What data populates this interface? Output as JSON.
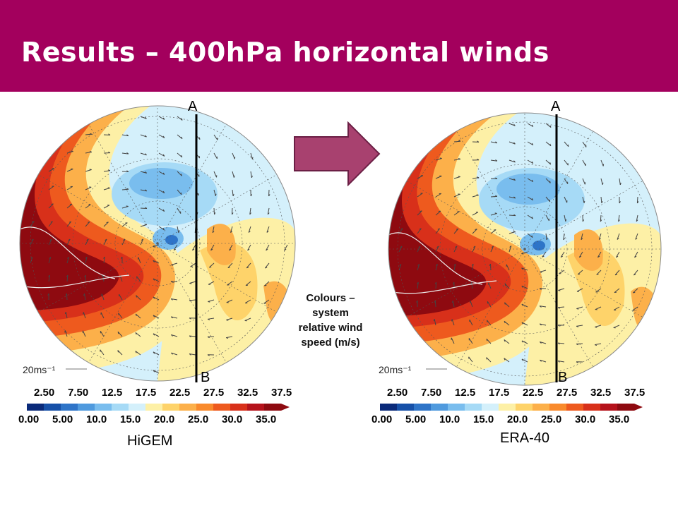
{
  "slide": {
    "title": "Results – 400hPa horizontal winds",
    "caption_lines": [
      "Colours –",
      "system",
      "relative wind",
      "speed (m/s)"
    ],
    "colors": {
      "header": "#a3005d",
      "arrow": "#a8416f"
    }
  },
  "panels": [
    {
      "model_label": "HiGEM",
      "section_top": "A",
      "section_bottom": "B",
      "reference_vector": "20ms⁻¹"
    },
    {
      "model_label": "ERA-40",
      "section_top": "A",
      "section_bottom": "B",
      "reference_vector": "20ms⁻¹"
    }
  ],
  "colorbar": {
    "upper_labels": [
      "2.50",
      "7.50",
      "12.5",
      "17.5",
      "22.5",
      "27.5",
      "32.5",
      "37.5"
    ],
    "lower_labels": [
      "0.00",
      "5.00",
      "10.0",
      "15.0",
      "20.0",
      "25.0",
      "30.0",
      "35.0"
    ],
    "colors": [
      "#0a2a7a",
      "#1650a8",
      "#2e74c8",
      "#4f9ade",
      "#79bdee",
      "#a6daf6",
      "#d4f0fb",
      "#fdf0a6",
      "#fed36a",
      "#fcb04a",
      "#f98a2c",
      "#ee5a1e",
      "#d8301a",
      "#b5121b",
      "#8e0a10"
    ]
  }
}
